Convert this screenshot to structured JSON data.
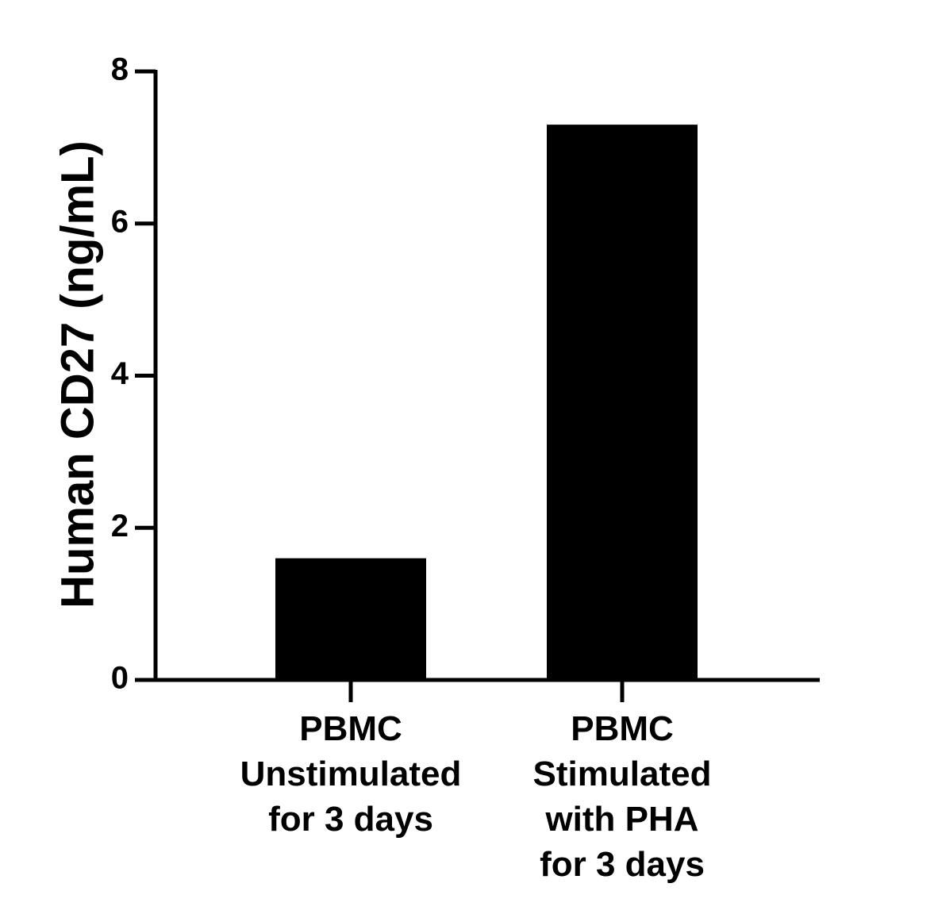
{
  "chart_data": {
    "type": "bar",
    "title": "",
    "xlabel": "",
    "ylabel": "Human CD27 (ng/mL)",
    "ylim": [
      0,
      8
    ],
    "yticks": [
      0,
      2,
      4,
      6,
      8
    ],
    "ytick_labels": [
      "0",
      "2",
      "4",
      "6",
      "8"
    ],
    "categories": [
      [
        "PBMC",
        "Unstimulated",
        "for 3 days"
      ],
      [
        "PBMC",
        "Stimulated",
        "with PHA",
        "for 3 days"
      ]
    ],
    "values": [
      1.6,
      7.3
    ],
    "grid": false,
    "legend": "none",
    "bar_color": "#000000",
    "axis_color": "#000000"
  }
}
